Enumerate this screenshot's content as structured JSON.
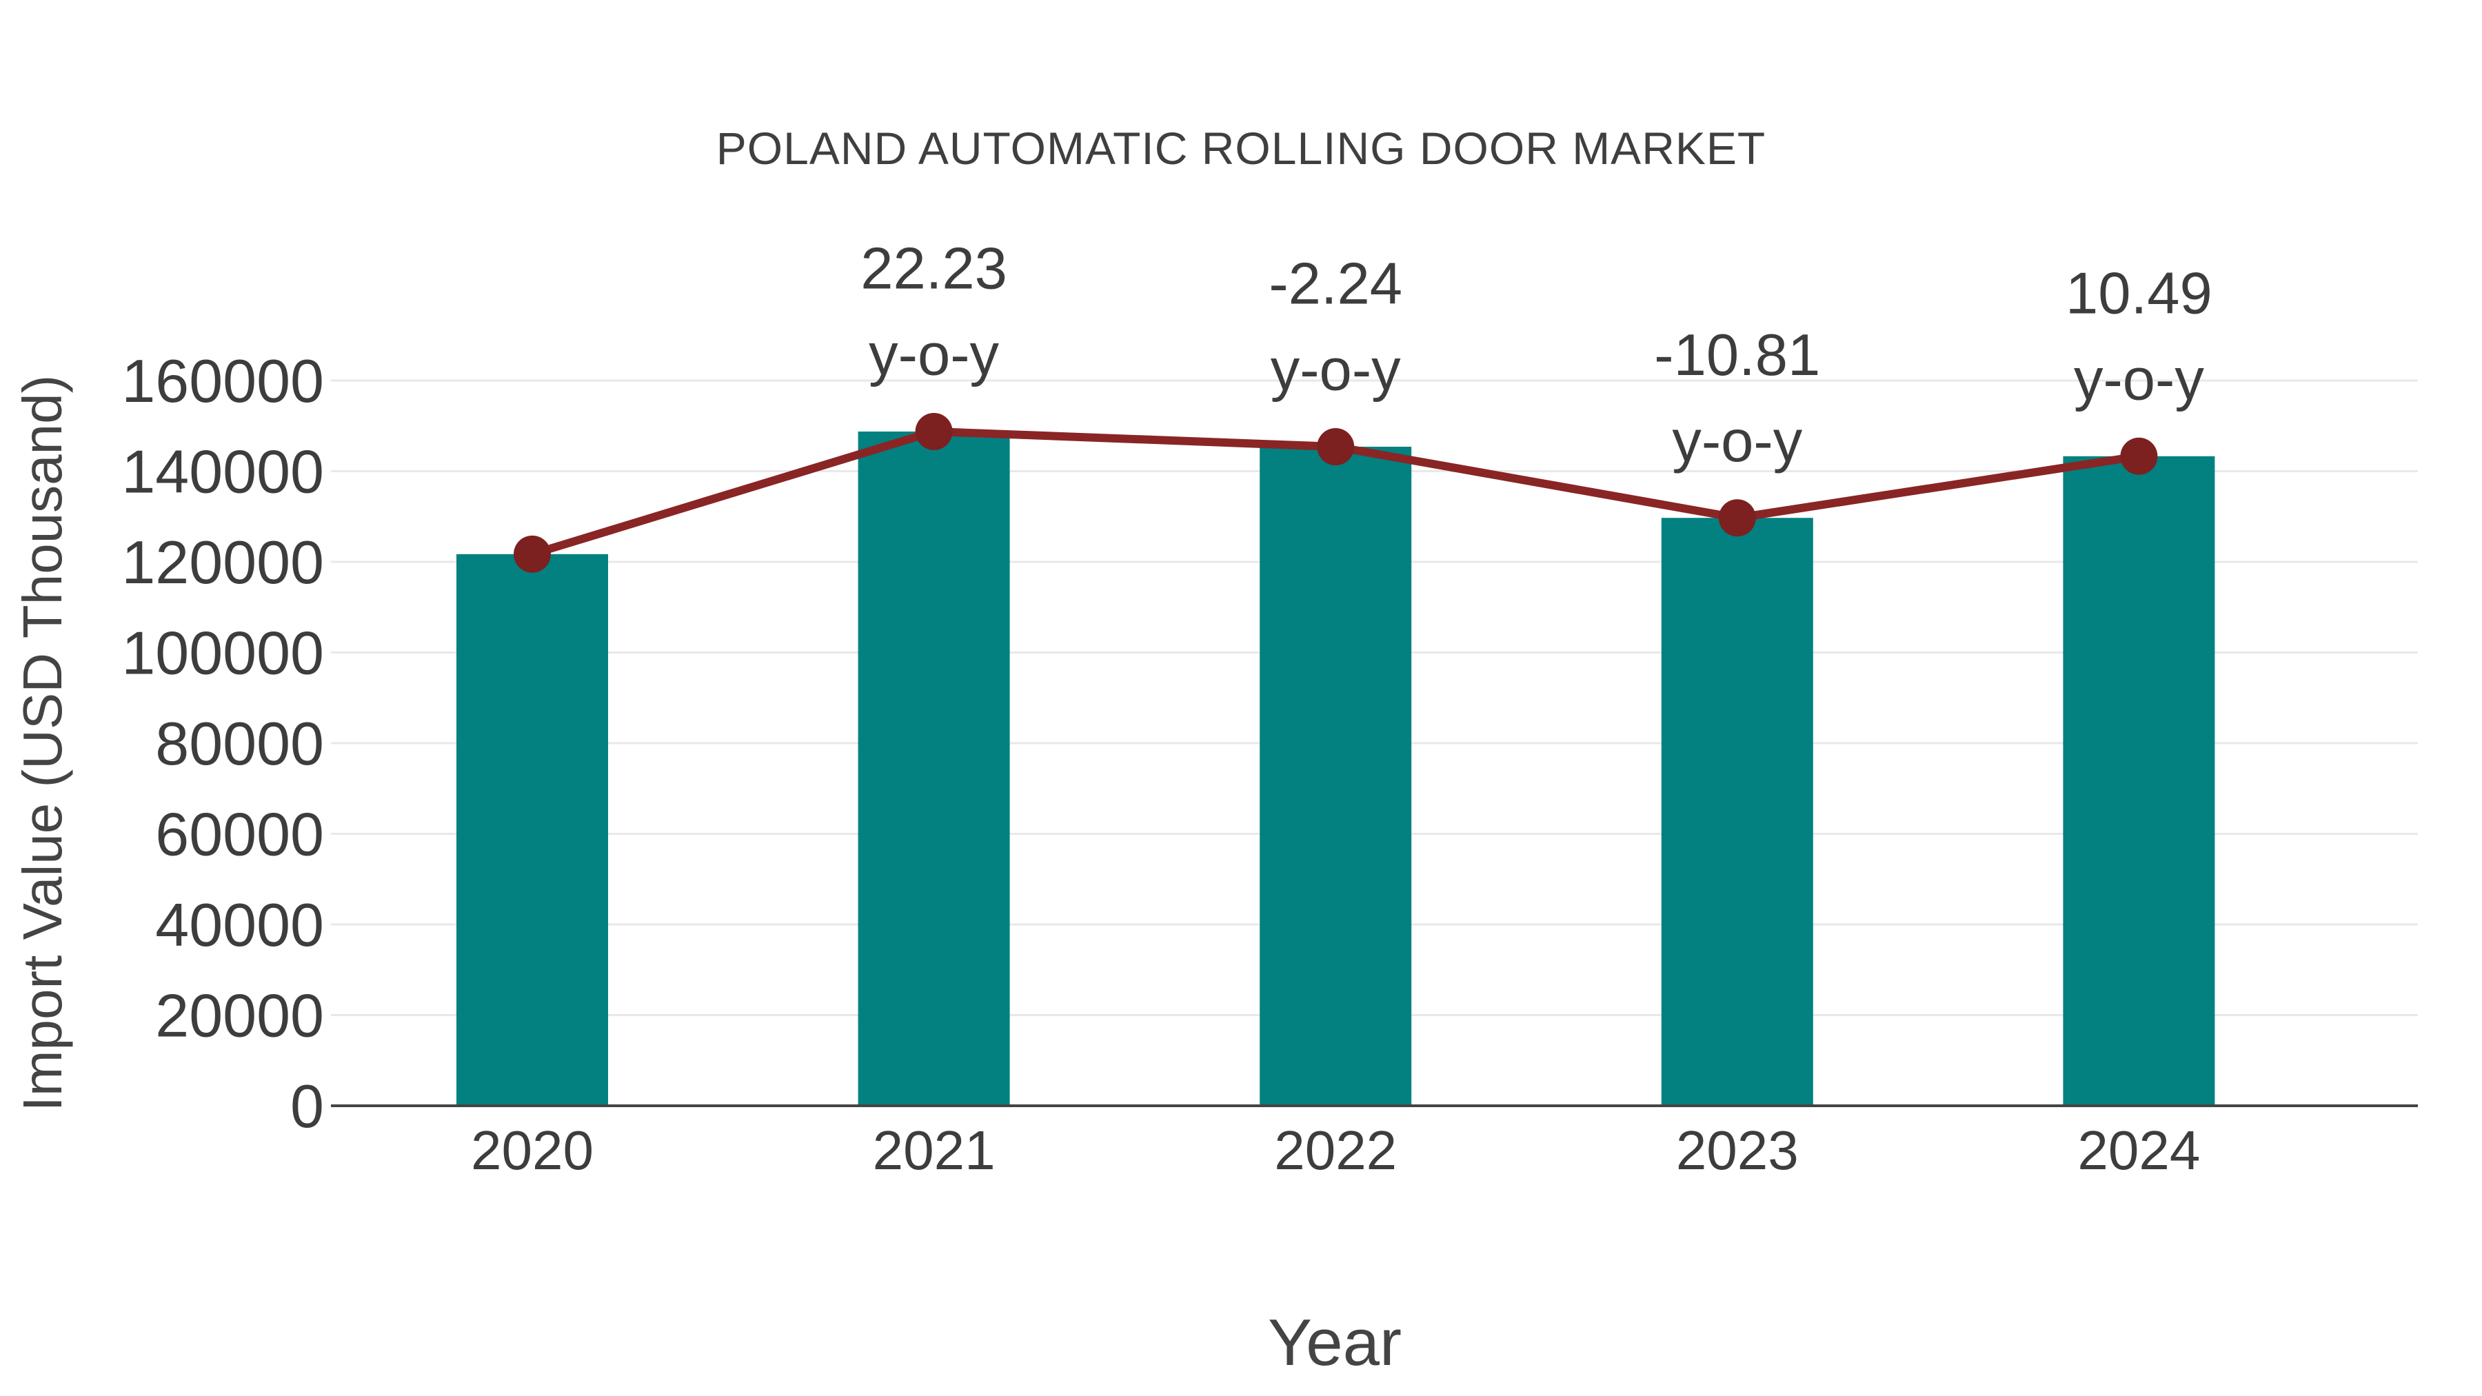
{
  "title": "POLAND AUTOMATIC ROLLING DOOR MARKET",
  "chart_data": {
    "type": "bar",
    "subtype": "bar-with-line-overlay",
    "categories": [
      "2020",
      "2021",
      "2022",
      "2023",
      "2024"
    ],
    "series": [
      {
        "name": "import-value-bars",
        "type": "bar",
        "values": [
          121700,
          148750,
          145400,
          129700,
          143300
        ]
      },
      {
        "name": "import-value-trend-line",
        "type": "line",
        "values": [
          121700,
          148750,
          145400,
          129700,
          143300
        ]
      }
    ],
    "annotations": [
      {
        "category": "2021",
        "line1": "22.23",
        "line2": "y-o-y"
      },
      {
        "category": "2022",
        "line1": "-2.24",
        "line2": "y-o-y"
      },
      {
        "category": "2023",
        "line1": "-10.81",
        "line2": "y-o-y"
      },
      {
        "category": "2024",
        "line1": "10.49",
        "line2": "y-o-y"
      }
    ],
    "title": "POLAND AUTOMATIC ROLLING DOOR MARKET",
    "xlabel": "Year",
    "ylabel": "Import Value (USD Thousand)",
    "ylim": [
      0,
      160000
    ],
    "ytick_step": 20000,
    "ytick_labels": [
      "0",
      "20000",
      "40000",
      "60000",
      "80000",
      "100000",
      "120000",
      "140000",
      "160000"
    ],
    "grid": true,
    "legend": false
  },
  "colors": {
    "bar": "#028180",
    "line": "#8A2525",
    "marker": "#7D2020",
    "gridline": "#E8E8E8",
    "axis_line": "#444444",
    "tick_text": "#3D3D3D",
    "annotation_text": "#3D3D3D",
    "background": "#FFFFFF"
  }
}
